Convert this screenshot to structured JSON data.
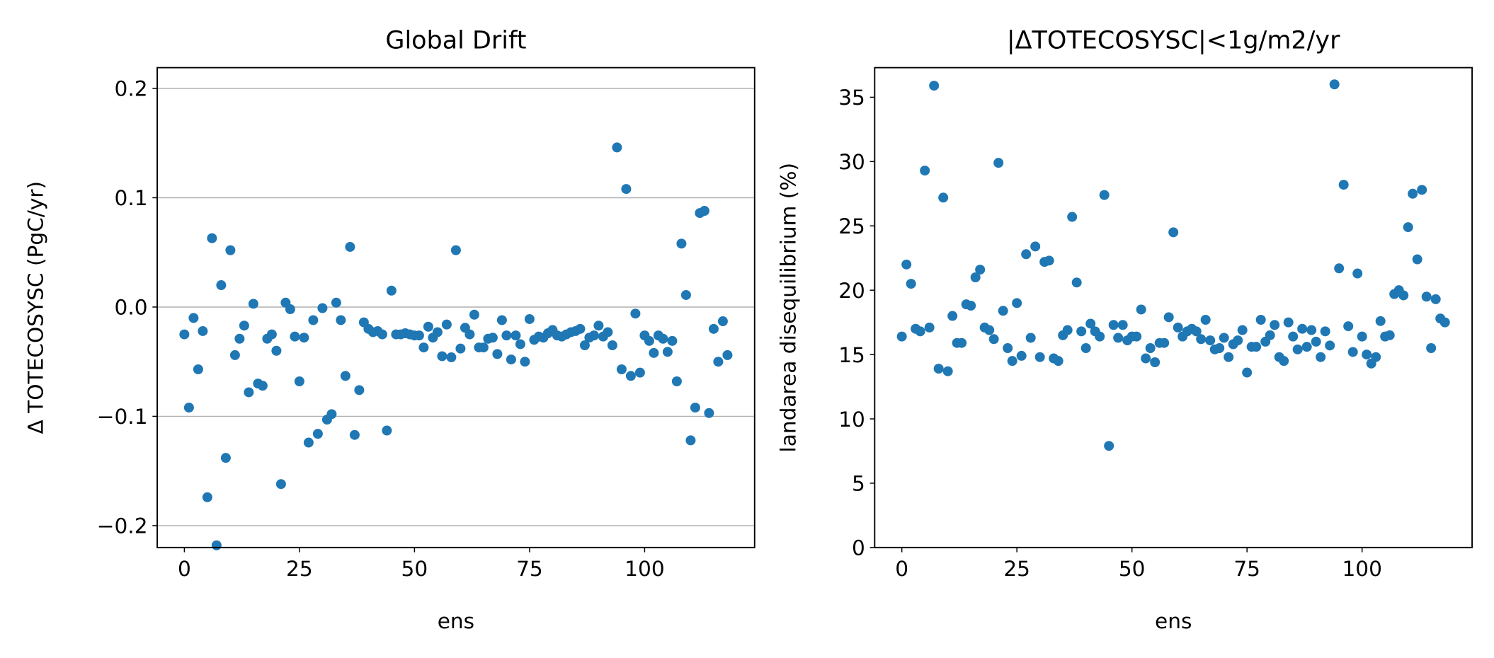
{
  "chart_data": [
    {
      "type": "scatter",
      "title": "Global Drift",
      "x_label": "ens",
      "y_label": "Δ TOTECOSYSC (PgC/yr)",
      "color": "#1f77b4",
      "grid": "y",
      "xlim": [
        -5.9,
        123.9
      ],
      "xticks": [
        0,
        25,
        50,
        75,
        100
      ],
      "ylim": [
        -0.22,
        0.219
      ],
      "yticks": [
        {
          "value": -0.2,
          "label": "−0.2"
        },
        {
          "value": -0.1,
          "label": "−0.1"
        },
        {
          "value": 0,
          "label": "0.0"
        },
        0.1,
        0.2
      ],
      "x": [
        0,
        1,
        2,
        3,
        4,
        5,
        6,
        7,
        8,
        9,
        10,
        11,
        12,
        13,
        14,
        15,
        16,
        17,
        18,
        19,
        20,
        21,
        22,
        23,
        24,
        25,
        26,
        27,
        28,
        29,
        30,
        31,
        32,
        33,
        34,
        35,
        36,
        37,
        38,
        39,
        40,
        41,
        42,
        43,
        44,
        45,
        46,
        47,
        48,
        49,
        50,
        51,
        52,
        53,
        54,
        55,
        56,
        57,
        58,
        59,
        60,
        61,
        62,
        63,
        64,
        65,
        66,
        67,
        68,
        69,
        70,
        71,
        72,
        73,
        74,
        75,
        76,
        77,
        78,
        79,
        80,
        81,
        82,
        83,
        84,
        85,
        86,
        87,
        88,
        89,
        90,
        91,
        92,
        93,
        94,
        95,
        96,
        97,
        98,
        99,
        100,
        101,
        102,
        103,
        104,
        105,
        106,
        107,
        108,
        109,
        110,
        111,
        112,
        113,
        114,
        115,
        116,
        117,
        118
      ],
      "values": [
        -0.025,
        -0.092,
        -0.01,
        -0.057,
        -0.022,
        -0.174,
        0.063,
        -0.218,
        0.02,
        -0.138,
        0.052,
        -0.044,
        -0.029,
        -0.017,
        -0.078,
        0.003,
        -0.07,
        -0.072,
        -0.029,
        -0.025,
        -0.04,
        -0.162,
        0.004,
        -0.002,
        -0.027,
        -0.068,
        -0.028,
        -0.124,
        -0.012,
        -0.116,
        -0.001,
        -0.103,
        -0.098,
        0.004,
        -0.012,
        -0.063,
        0.055,
        -0.117,
        -0.076,
        -0.014,
        -0.02,
        -0.023,
        -0.022,
        -0.025,
        -0.113,
        0.015,
        -0.025,
        -0.025,
        -0.024,
        -0.025,
        -0.026,
        -0.026,
        -0.037,
        -0.018,
        -0.028,
        -0.023,
        -0.045,
        -0.016,
        -0.046,
        0.052,
        -0.038,
        -0.019,
        -0.025,
        -0.007,
        -0.037,
        -0.037,
        -0.029,
        -0.028,
        -0.043,
        -0.012,
        -0.026,
        -0.048,
        -0.026,
        -0.034,
        -0.05,
        -0.011,
        -0.03,
        -0.027,
        -0.028,
        -0.024,
        -0.021,
        -0.026,
        -0.027,
        -0.025,
        -0.023,
        -0.022,
        -0.02,
        -0.035,
        -0.028,
        -0.026,
        -0.017,
        -0.027,
        -0.023,
        -0.035,
        0.146,
        -0.057,
        0.108,
        -0.063,
        -0.006,
        -0.06,
        -0.026,
        -0.031,
        -0.042,
        -0.026,
        -0.029,
        -0.041,
        -0.031,
        -0.068,
        0.058,
        0.011,
        -0.122,
        -0.092,
        0.086,
        0.088,
        -0.097,
        -0.02,
        -0.05,
        -0.013,
        -0.044
      ]
    },
    {
      "type": "scatter",
      "title": "|ΔTOTECOSYSC|<1g/m2/yr",
      "x_label": "ens",
      "y_label": "landarea disequilibrium (%)",
      "color": "#1f77b4",
      "grid": false,
      "xlim": [
        -5.9,
        123.9
      ],
      "xticks": [
        0,
        25,
        50,
        75,
        100
      ],
      "ylim": [
        0,
        37.3
      ],
      "yticks": [
        0,
        5,
        10,
        15,
        20,
        25,
        30,
        35
      ],
      "x": [
        0,
        1,
        2,
        3,
        4,
        5,
        6,
        7,
        8,
        9,
        10,
        11,
        12,
        13,
        14,
        15,
        16,
        17,
        18,
        19,
        20,
        21,
        22,
        23,
        24,
        25,
        26,
        27,
        28,
        29,
        30,
        31,
        32,
        33,
        34,
        35,
        36,
        37,
        38,
        39,
        40,
        41,
        42,
        43,
        44,
        45,
        46,
        47,
        48,
        49,
        50,
        51,
        52,
        53,
        54,
        55,
        56,
        57,
        58,
        59,
        60,
        61,
        62,
        63,
        64,
        65,
        66,
        67,
        68,
        69,
        70,
        71,
        72,
        73,
        74,
        75,
        76,
        77,
        78,
        79,
        80,
        81,
        82,
        83,
        84,
        85,
        86,
        87,
        88,
        89,
        90,
        91,
        92,
        93,
        94,
        95,
        96,
        97,
        98,
        99,
        100,
        101,
        102,
        103,
        104,
        105,
        106,
        107,
        108,
        109,
        110,
        111,
        112,
        113,
        114,
        115,
        116,
        117,
        118
      ],
      "values": [
        16.4,
        22.0,
        20.5,
        17.0,
        16.8,
        29.3,
        17.1,
        35.9,
        13.9,
        27.2,
        13.7,
        18.0,
        15.9,
        15.9,
        18.9,
        18.8,
        21.0,
        21.6,
        17.1,
        16.9,
        16.2,
        29.9,
        18.4,
        15.5,
        14.5,
        19.0,
        14.9,
        22.8,
        16.3,
        23.4,
        14.8,
        22.2,
        22.3,
        14.7,
        14.5,
        16.5,
        16.9,
        25.7,
        20.6,
        16.8,
        15.5,
        17.4,
        16.8,
        16.4,
        27.4,
        7.9,
        17.3,
        16.3,
        17.3,
        16.1,
        16.4,
        16.4,
        18.5,
        14.7,
        15.5,
        14.4,
        15.9,
        15.9,
        17.9,
        24.5,
        17.1,
        16.4,
        16.8,
        17.0,
        16.8,
        16.2,
        17.7,
        16.1,
        15.4,
        15.5,
        16.3,
        14.8,
        15.8,
        16.1,
        16.9,
        13.6,
        15.6,
        15.6,
        17.7,
        16.0,
        16.5,
        17.3,
        14.8,
        14.5,
        17.5,
        16.4,
        15.4,
        17.0,
        15.6,
        16.9,
        16.0,
        14.8,
        16.8,
        15.7,
        36.0,
        21.7,
        28.2,
        17.2,
        15.2,
        21.3,
        16.4,
        15.0,
        14.3,
        14.8,
        17.6,
        16.4,
        16.5,
        19.7,
        20.0,
        19.6,
        24.9,
        27.5,
        22.4,
        27.8,
        19.5,
        15.5,
        19.3,
        17.8,
        17.5
      ]
    }
  ]
}
